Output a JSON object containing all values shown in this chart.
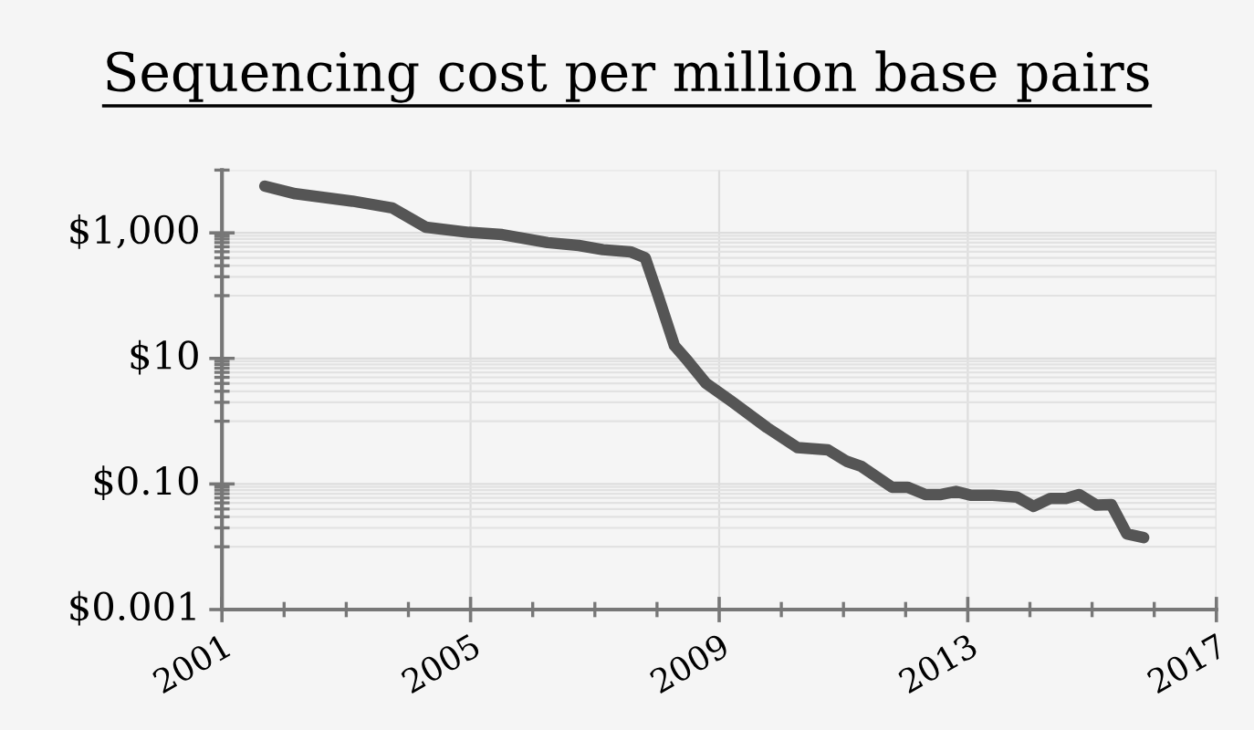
{
  "chart_data": {
    "type": "line",
    "title": "Sequencing cost per million base pairs",
    "x": [
      2001.69,
      2002.18,
      2003.1,
      2003.74,
      2004.28,
      2004.97,
      2005.51,
      2006.24,
      2006.74,
      2007.13,
      2007.57,
      2007.81,
      2008.01,
      2008.28,
      2008.5,
      2008.79,
      2009.19,
      2009.77,
      2010.26,
      2010.75,
      2011.05,
      2011.29,
      2011.78,
      2012.03,
      2012.32,
      2012.57,
      2012.81,
      2013.06,
      2013.4,
      2013.79,
      2014.06,
      2014.33,
      2014.58,
      2014.79,
      2015.07,
      2015.31,
      2015.56,
      2015.83
    ],
    "series": [
      {
        "color": "#555555",
        "values": [
          5560,
          4200,
          3200,
          2500,
          1230,
          1020,
          940,
          700,
          630,
          540,
          500,
          400,
          105,
          16,
          9,
          4,
          2.1,
          0.79,
          0.38,
          0.35,
          0.23,
          0.19,
          0.089,
          0.089,
          0.068,
          0.068,
          0.076,
          0.066,
          0.066,
          0.062,
          0.044,
          0.059,
          0.059,
          0.068,
          0.046,
          0.047,
          0.016,
          0.014
        ]
      }
    ],
    "log": "y",
    "xlim": [
      2001,
      2017
    ],
    "ylim": [
      0.001,
      10000
    ],
    "xticks": [
      2001,
      {
        "value": 2002,
        "label": null
      },
      {
        "value": 2003,
        "label": null
      },
      {
        "value": 2004,
        "label": null
      },
      2005,
      {
        "value": 2006,
        "label": null
      },
      {
        "value": 2007,
        "label": null
      },
      {
        "value": 2008,
        "label": null
      },
      2009,
      {
        "value": 2010,
        "label": null
      },
      {
        "value": 2011,
        "label": null
      },
      {
        "value": 2012,
        "label": null
      },
      2013,
      {
        "value": 2014,
        "label": null
      },
      {
        "value": 2015,
        "label": null
      },
      {
        "value": 2016,
        "label": null
      },
      2017
    ],
    "yticks": [
      {
        "value": 0.001,
        "label": "$0.001"
      },
      {
        "value": 0.01,
        "label": null
      },
      {
        "value": 0.02,
        "label": null
      },
      {
        "value": 0.03,
        "label": null
      },
      {
        "value": 0.04,
        "label": null
      },
      {
        "value": 0.05,
        "label": null
      },
      {
        "value": 0.06,
        "label": null
      },
      {
        "value": 0.07,
        "label": null
      },
      {
        "value": 0.08,
        "label": null
      },
      {
        "value": 0.09,
        "label": null
      },
      {
        "value": 0.1,
        "label": "$0.10"
      },
      {
        "value": 1,
        "label": null
      },
      {
        "value": 2,
        "label": null
      },
      {
        "value": 3,
        "label": null
      },
      {
        "value": 4,
        "label": null
      },
      {
        "value": 5,
        "label": null
      },
      {
        "value": 6,
        "label": null
      },
      {
        "value": 7,
        "label": null
      },
      {
        "value": 8,
        "label": null
      },
      {
        "value": 9,
        "label": null
      },
      {
        "value": 10,
        "label": "$10"
      },
      {
        "value": 100,
        "label": null
      },
      {
        "value": 200,
        "label": null
      },
      {
        "value": 300,
        "label": null
      },
      {
        "value": 400,
        "label": null
      },
      {
        "value": 500,
        "label": null
      },
      {
        "value": 600,
        "label": null
      },
      {
        "value": 700,
        "label": null
      },
      {
        "value": 800,
        "label": null
      },
      {
        "value": 900,
        "label": null
      },
      {
        "value": 1000,
        "label": "$1,000"
      },
      {
        "value": 10000,
        "label": null
      }
    ],
    "grid": true,
    "marker": "none",
    "line_style": "solid",
    "legend": false
  }
}
